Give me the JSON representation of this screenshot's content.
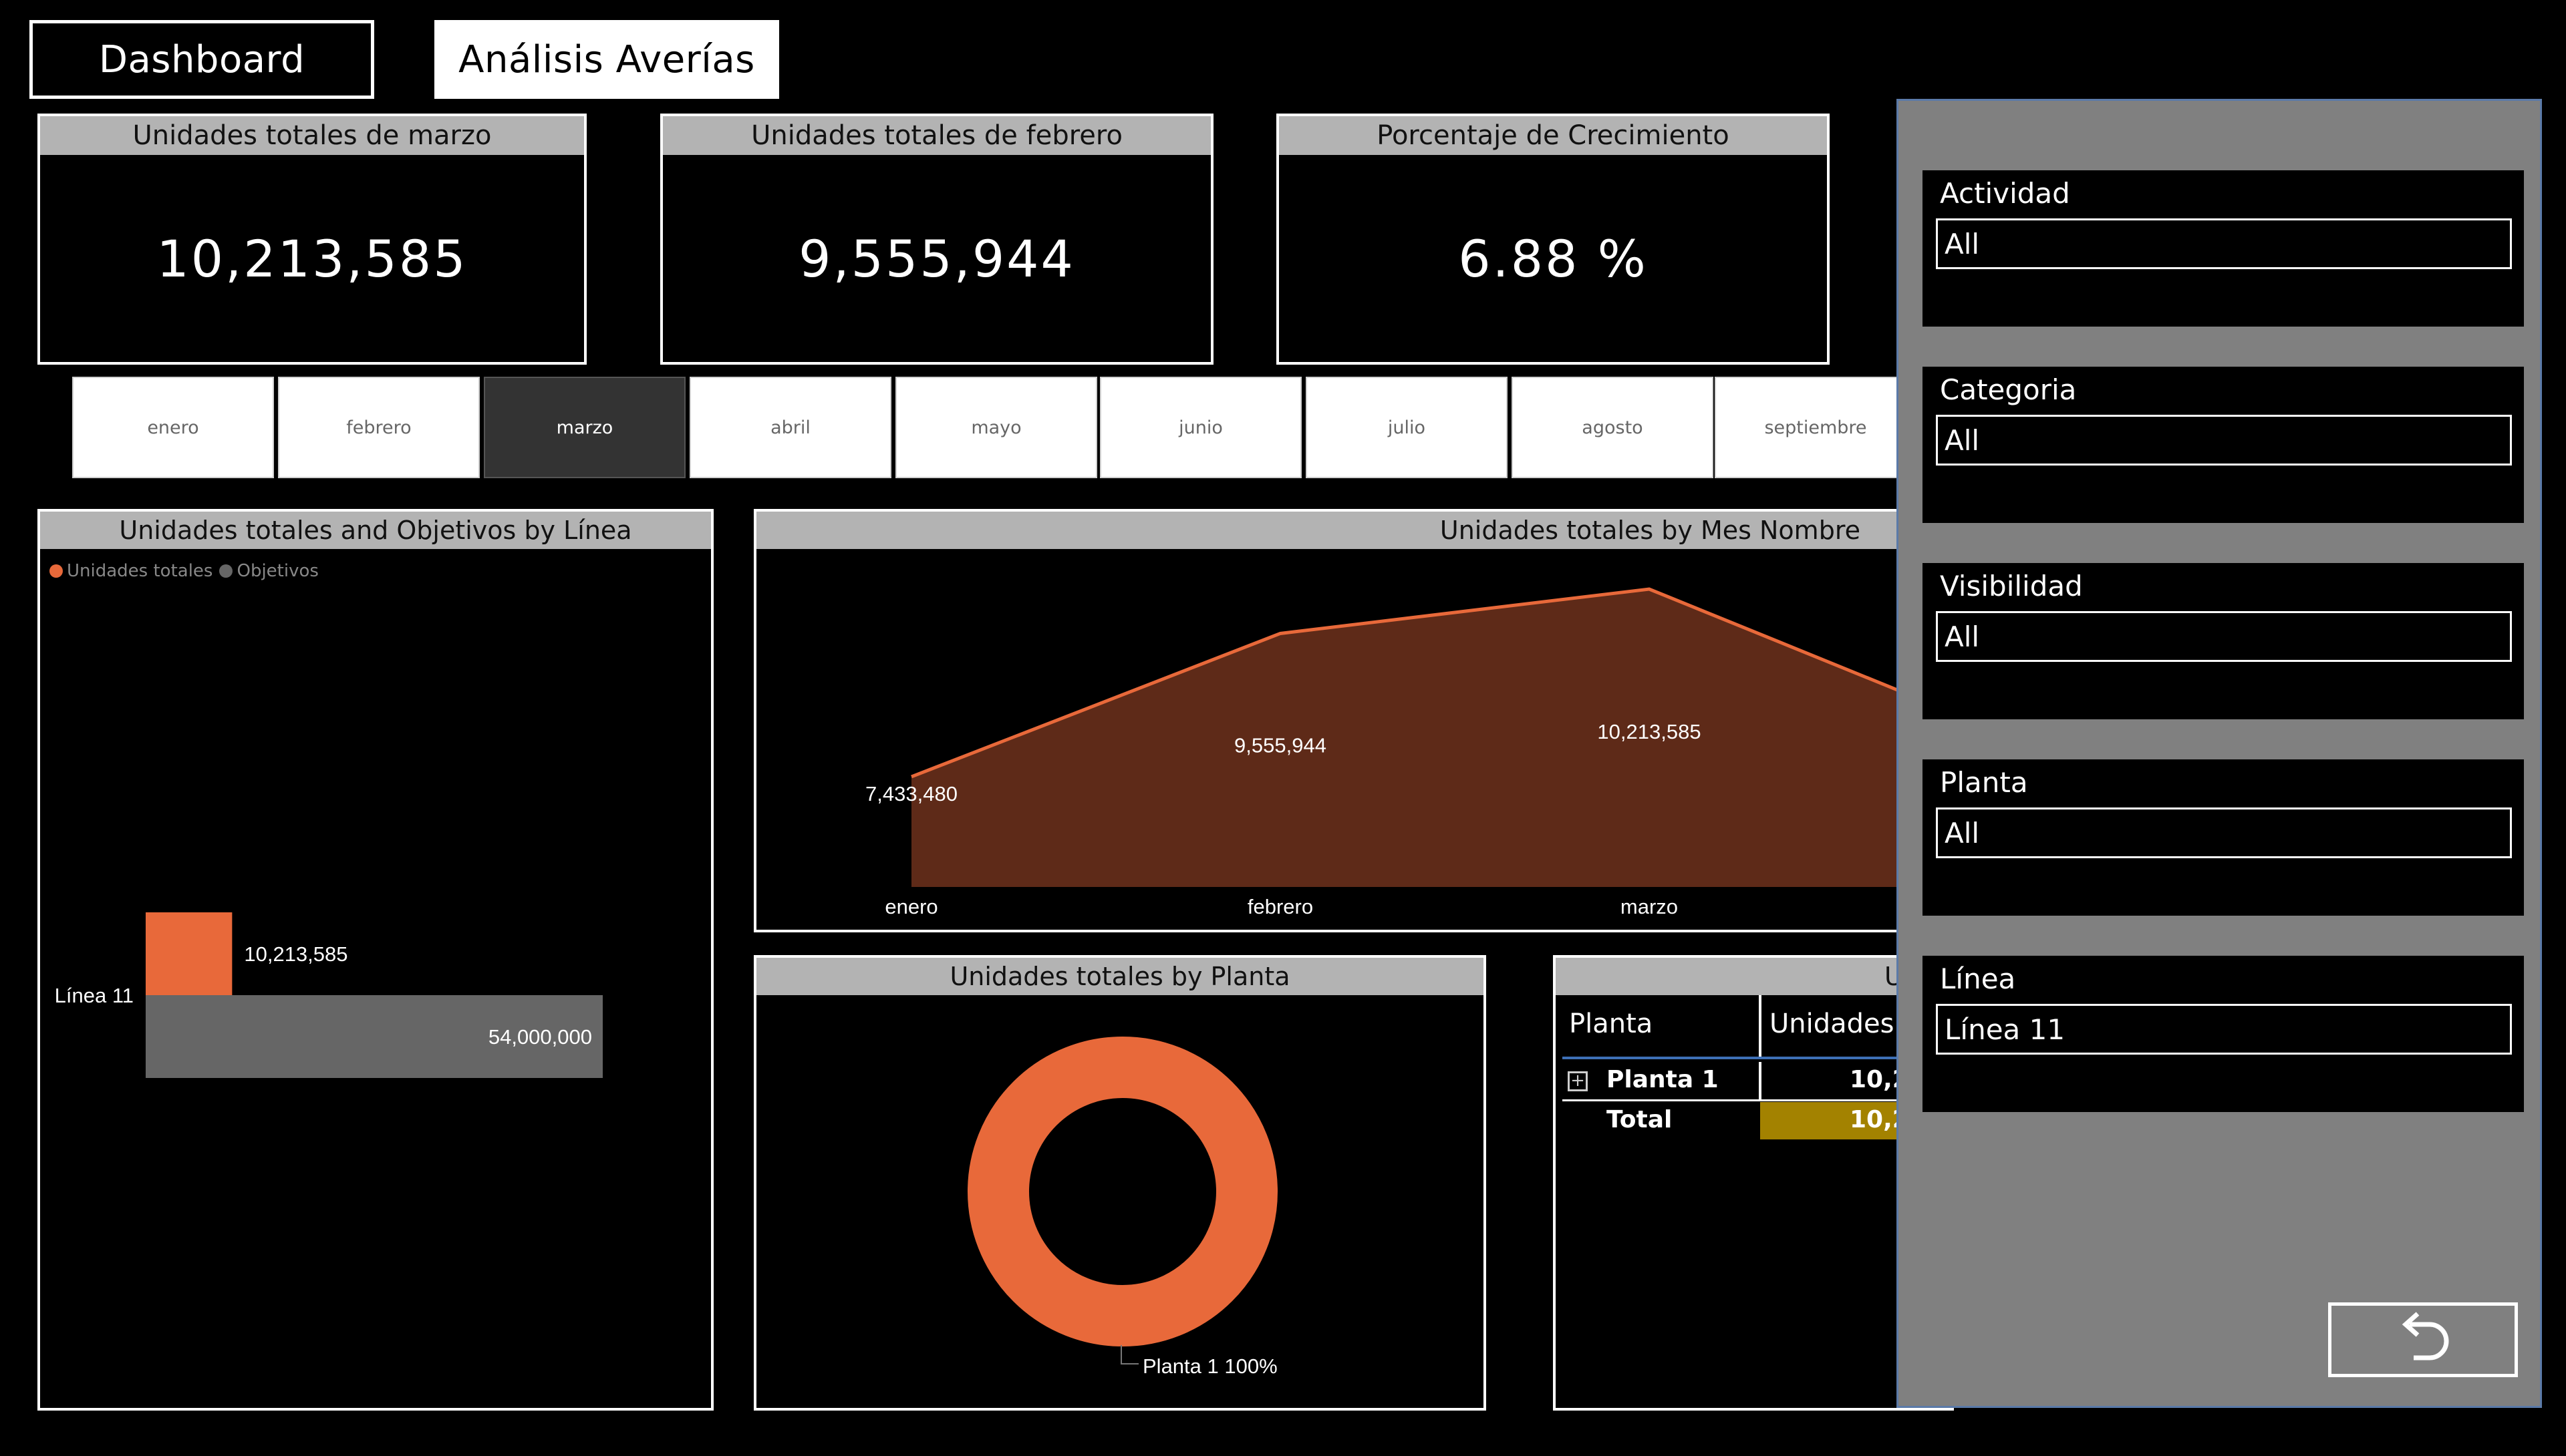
{
  "nav": {
    "dashboard_label": "Dashboard",
    "averias_label": "Análisis Averías"
  },
  "kpis": [
    {
      "title": "Unidades totales de marzo",
      "value": "10,213,585"
    },
    {
      "title": "Unidades totales de febrero",
      "value": "9,555,944"
    },
    {
      "title": "Porcentaje de Crecimiento",
      "value": "6.88 %"
    }
  ],
  "months": {
    "items": [
      "enero",
      "febrero",
      "marzo",
      "abril",
      "mayo",
      "junio",
      "julio",
      "agosto",
      "septiembre"
    ],
    "selected": "marzo"
  },
  "bar_panel": {
    "title": "Unidades totales and Objetivos by Línea",
    "legend": [
      "Unidades totales",
      "Objetivos"
    ]
  },
  "area_panel": {
    "title": "Unidades totales by Mes Nombre"
  },
  "donut_panel": {
    "title": "Unidades totales by Planta",
    "label": "Planta 1 100%"
  },
  "table_panel": {
    "title_visible": "U",
    "headers": [
      "Planta",
      "Unidades t"
    ],
    "rows": [
      {
        "planta": "Planta 1",
        "value": "10,2"
      },
      {
        "planta": "Total",
        "value": "10,2"
      }
    ]
  },
  "filters": [
    {
      "title": "Actividad",
      "value": "All"
    },
    {
      "title": "Categoria",
      "value": "All"
    },
    {
      "title": "Visibilidad",
      "value": "All"
    },
    {
      "title": "Planta",
      "value": "All"
    },
    {
      "title": "Línea",
      "value": "Línea 11"
    }
  ],
  "colors": {
    "accent": "#e8693a",
    "area_fill": "#5e2a18",
    "bar_gray": "#666666",
    "total_highlight": "#a38200",
    "pane_bg": "#808080"
  },
  "chart_data": [
    {
      "type": "bar",
      "title": "Unidades totales and Objetivos by Línea",
      "categories": [
        "Línea 11"
      ],
      "series": [
        {
          "name": "Unidades totales",
          "values": [
            10213585
          ],
          "labels": [
            "10,213,585"
          ]
        },
        {
          "name": "Objetivos",
          "values": [
            54000000
          ],
          "labels": [
            "54,000,000"
          ]
        }
      ],
      "orientation": "horizontal",
      "legend": "top-left"
    },
    {
      "type": "area",
      "title": "Unidades totales by Mes Nombre",
      "categories": [
        "enero",
        "febrero",
        "marzo"
      ],
      "values": [
        7433480,
        9555944,
        10213585
      ],
      "labels": [
        "7,433,480",
        "9,555,944",
        "10,213,585"
      ],
      "next_value_partial": 8700000
    },
    {
      "type": "pie",
      "title": "Unidades totales by Planta",
      "categories": [
        "Planta 1"
      ],
      "values": [
        100
      ],
      "labels": [
        "Planta 1 100%"
      ],
      "donut": true
    }
  ]
}
